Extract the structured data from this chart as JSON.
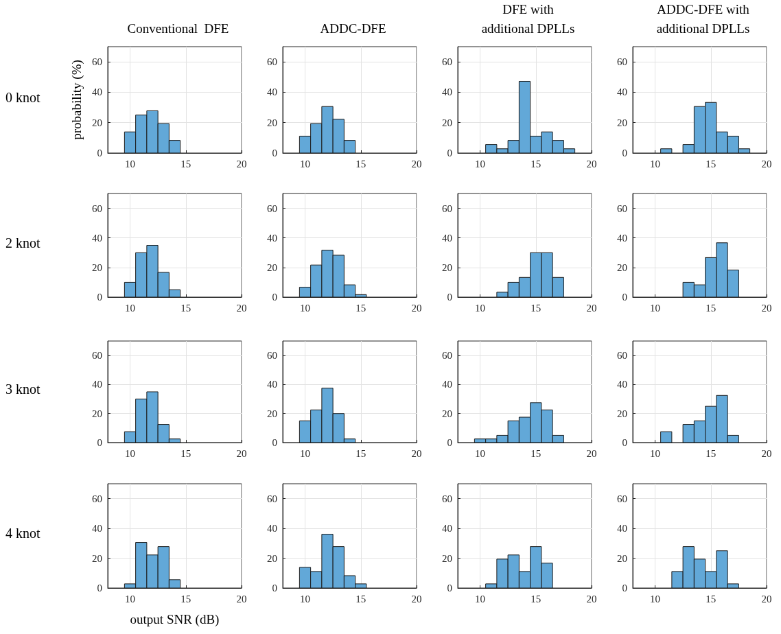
{
  "chart_data": [
    {
      "type": "histogram",
      "title": "Conventional  DFE",
      "ylabel": "probability (%)",
      "annotations": [
        "0 knot"
      ],
      "bins": [
        9.5,
        10.5,
        11.5,
        12.5,
        13.5,
        14.5,
        15.5,
        16.5,
        17.5,
        18.5,
        19.5
      ],
      "values": [
        13.9,
        25,
        27.8,
        19.4,
        8.3,
        0,
        0,
        0,
        0,
        0
      ],
      "color": "#62a8d8",
      "xlim": [
        8,
        20
      ],
      "xticks": [
        10,
        15,
        20
      ],
      "ylim": [
        0,
        70
      ],
      "yticks": [
        0,
        20,
        40,
        60
      ],
      "grid": true
    },
    {
      "type": "histogram",
      "title": "ADDC-DFE",
      "bins": [
        9.5,
        10.5,
        11.5,
        12.5,
        13.5,
        14.5,
        15.5,
        16.5,
        17.5,
        18.5,
        19.5
      ],
      "values": [
        11.1,
        19.4,
        30.6,
        22.2,
        8.3,
        0,
        0,
        0,
        0,
        0
      ],
      "color": "#62a8d8",
      "xlim": [
        8,
        20
      ],
      "xticks": [
        10,
        15,
        20
      ],
      "ylim": [
        0,
        70
      ],
      "yticks": [
        0,
        20,
        40,
        60
      ],
      "grid": true
    },
    {
      "type": "histogram",
      "title": "DFE with\nadditional DPLLs",
      "bins": [
        9.5,
        10.5,
        11.5,
        12.5,
        13.5,
        14.5,
        15.5,
        16.5,
        17.5,
        18.5,
        19.5
      ],
      "values": [
        0,
        5.6,
        2.8,
        8.3,
        47.2,
        11.1,
        13.9,
        8.3,
        2.8,
        0
      ],
      "color": "#62a8d8",
      "xlim": [
        8,
        20
      ],
      "xticks": [
        10,
        15,
        20
      ],
      "ylim": [
        0,
        70
      ],
      "yticks": [
        0,
        20,
        40,
        60
      ],
      "grid": true
    },
    {
      "type": "histogram",
      "title": "ADDC-DFE with\nadditional DPLLs",
      "bins": [
        9.5,
        10.5,
        11.5,
        12.5,
        13.5,
        14.5,
        15.5,
        16.5,
        17.5,
        18.5,
        19.5
      ],
      "values": [
        0,
        2.8,
        0,
        5.6,
        30.6,
        33.3,
        13.9,
        11.1,
        2.8,
        0
      ],
      "color": "#62a8d8",
      "xlim": [
        8,
        20
      ],
      "xticks": [
        10,
        15,
        20
      ],
      "ylim": [
        0,
        70
      ],
      "yticks": [
        0,
        20,
        40,
        60
      ],
      "grid": true
    },
    {
      "type": "histogram",
      "annotations": [
        "2 knot"
      ],
      "bins": [
        9.5,
        10.5,
        11.5,
        12.5,
        13.5,
        14.5,
        15.5,
        16.5,
        17.5,
        18.5,
        19.5
      ],
      "values": [
        10,
        30,
        35,
        16.7,
        5,
        0,
        0,
        0,
        0,
        0
      ],
      "color": "#62a8d8",
      "xlim": [
        8,
        20
      ],
      "xticks": [
        10,
        15,
        20
      ],
      "ylim": [
        0,
        70
      ],
      "yticks": [
        0,
        20,
        40,
        60
      ],
      "grid": true
    },
    {
      "type": "histogram",
      "bins": [
        9.5,
        10.5,
        11.5,
        12.5,
        13.5,
        14.5,
        15.5,
        16.5,
        17.5,
        18.5,
        19.5
      ],
      "values": [
        6.7,
        21.7,
        31.7,
        28.3,
        8.3,
        1.7,
        0,
        0,
        0,
        0
      ],
      "color": "#62a8d8",
      "xlim": [
        8,
        20
      ],
      "xticks": [
        10,
        15,
        20
      ],
      "ylim": [
        0,
        70
      ],
      "yticks": [
        0,
        20,
        40,
        60
      ],
      "grid": true
    },
    {
      "type": "histogram",
      "bins": [
        9.5,
        10.5,
        11.5,
        12.5,
        13.5,
        14.5,
        15.5,
        16.5,
        17.5,
        18.5,
        19.5
      ],
      "values": [
        0,
        0,
        3.3,
        10,
        13.3,
        30,
        30,
        13.3,
        0,
        0
      ],
      "color": "#62a8d8",
      "xlim": [
        8,
        20
      ],
      "xticks": [
        10,
        15,
        20
      ],
      "ylim": [
        0,
        70
      ],
      "yticks": [
        0,
        20,
        40,
        60
      ],
      "grid": true
    },
    {
      "type": "histogram",
      "bins": [
        9.5,
        10.5,
        11.5,
        12.5,
        13.5,
        14.5,
        15.5,
        16.5,
        17.5,
        18.5,
        19.5
      ],
      "values": [
        0,
        0,
        0,
        10,
        8.3,
        26.7,
        36.7,
        18.3,
        0,
        0
      ],
      "color": "#62a8d8",
      "xlim": [
        8,
        20
      ],
      "xticks": [
        10,
        15,
        20
      ],
      "ylim": [
        0,
        70
      ],
      "yticks": [
        0,
        20,
        40,
        60
      ],
      "grid": true
    },
    {
      "type": "histogram",
      "annotations": [
        "3 knot"
      ],
      "bins": [
        9.5,
        10.5,
        11.5,
        12.5,
        13.5,
        14.5,
        15.5,
        16.5,
        17.5,
        18.5,
        19.5
      ],
      "values": [
        7.5,
        30,
        35,
        12.5,
        2.5,
        0,
        0,
        0,
        0,
        0
      ],
      "color": "#62a8d8",
      "xlim": [
        8,
        20
      ],
      "xticks": [
        10,
        15,
        20
      ],
      "ylim": [
        0,
        70
      ],
      "yticks": [
        0,
        20,
        40,
        60
      ],
      "grid": true
    },
    {
      "type": "histogram",
      "bins": [
        9.5,
        10.5,
        11.5,
        12.5,
        13.5,
        14.5,
        15.5,
        16.5,
        17.5,
        18.5,
        19.5
      ],
      "values": [
        15,
        22.5,
        37.5,
        20,
        2.5,
        0,
        0,
        0,
        0,
        0
      ],
      "color": "#62a8d8",
      "xlim": [
        8,
        20
      ],
      "xticks": [
        10,
        15,
        20
      ],
      "ylim": [
        0,
        70
      ],
      "yticks": [
        0,
        20,
        40,
        60
      ],
      "grid": true
    },
    {
      "type": "histogram",
      "bins": [
        9.5,
        10.5,
        11.5,
        12.5,
        13.5,
        14.5,
        15.5,
        16.5,
        17.5,
        18.5,
        19.5
      ],
      "values": [
        2.5,
        2.5,
        5,
        15,
        17.5,
        27.5,
        22.5,
        5,
        0,
        0
      ],
      "color": "#62a8d8",
      "xlim": [
        8,
        20
      ],
      "xticks": [
        10,
        15,
        20
      ],
      "ylim": [
        0,
        70
      ],
      "yticks": [
        0,
        20,
        40,
        60
      ],
      "grid": true
    },
    {
      "type": "histogram",
      "bins": [
        9.5,
        10.5,
        11.5,
        12.5,
        13.5,
        14.5,
        15.5,
        16.5,
        17.5,
        18.5,
        19.5
      ],
      "values": [
        0,
        7.5,
        0,
        12.5,
        15,
        25,
        32.5,
        5,
        0,
        0
      ],
      "color": "#62a8d8",
      "xlim": [
        8,
        20
      ],
      "xticks": [
        10,
        15,
        20
      ],
      "ylim": [
        0,
        70
      ],
      "yticks": [
        0,
        20,
        40,
        60
      ],
      "grid": true
    },
    {
      "type": "histogram",
      "xlabel": "output SNR (dB)",
      "annotations": [
        "4 knot"
      ],
      "bins": [
        9.5,
        10.5,
        11.5,
        12.5,
        13.5,
        14.5,
        15.5,
        16.5,
        17.5,
        18.5,
        19.5
      ],
      "values": [
        2.8,
        30.6,
        22.2,
        27.8,
        5.6,
        0,
        0,
        0,
        0,
        0
      ],
      "color": "#62a8d8",
      "xlim": [
        8,
        20
      ],
      "xticks": [
        10,
        15,
        20
      ],
      "ylim": [
        0,
        70
      ],
      "yticks": [
        0,
        20,
        40,
        60
      ],
      "grid": true
    },
    {
      "type": "histogram",
      "bins": [
        9.5,
        10.5,
        11.5,
        12.5,
        13.5,
        14.5,
        15.5,
        16.5,
        17.5,
        18.5,
        19.5
      ],
      "values": [
        13.9,
        11.1,
        36.1,
        27.8,
        8.3,
        2.8,
        0,
        0,
        0,
        0
      ],
      "color": "#62a8d8",
      "xlim": [
        8,
        20
      ],
      "xticks": [
        10,
        15,
        20
      ],
      "ylim": [
        0,
        70
      ],
      "yticks": [
        0,
        20,
        40,
        60
      ],
      "grid": true
    },
    {
      "type": "histogram",
      "bins": [
        9.5,
        10.5,
        11.5,
        12.5,
        13.5,
        14.5,
        15.5,
        16.5,
        17.5,
        18.5,
        19.5
      ],
      "values": [
        0,
        2.8,
        19.4,
        22.2,
        11.1,
        27.8,
        16.7,
        0,
        0,
        0
      ],
      "color": "#62a8d8",
      "xlim": [
        8,
        20
      ],
      "xticks": [
        10,
        15,
        20
      ],
      "ylim": [
        0,
        70
      ],
      "yticks": [
        0,
        20,
        40,
        60
      ],
      "grid": true
    },
    {
      "type": "histogram",
      "bins": [
        9.5,
        10.5,
        11.5,
        12.5,
        13.5,
        14.5,
        15.5,
        16.5,
        17.5,
        18.5,
        19.5
      ],
      "values": [
        0,
        0,
        11.1,
        27.8,
        19.4,
        11.1,
        25,
        2.8,
        0,
        0
      ],
      "color": "#62a8d8",
      "xlim": [
        8,
        20
      ],
      "xticks": [
        10,
        15,
        20
      ],
      "ylim": [
        0,
        70
      ],
      "yticks": [
        0,
        20,
        40,
        60
      ],
      "grid": true
    }
  ]
}
